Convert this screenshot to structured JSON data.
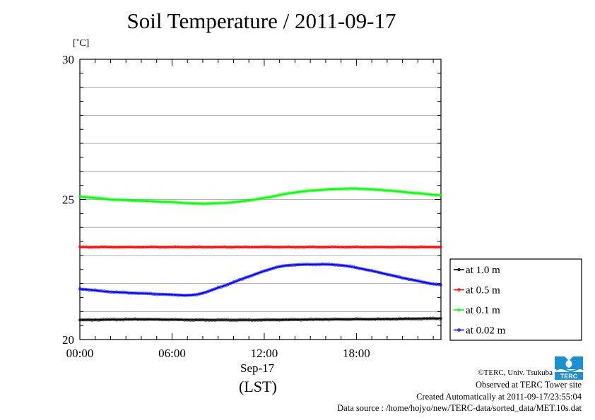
{
  "title": "Soil Temperature / 2011-09-17",
  "credits": [
    "©TERC, Univ. Tsukuba",
    "Observed at TERC Tower site",
    "Created Automatically at 2011-09-17/23:55:04",
    "Data source : /home/hojyo/new/TERC-data/sorted_data/MET.10s.dat"
  ],
  "logo_text": "TERC",
  "chart_data": {
    "type": "line",
    "title": "Soil Temperature / 2011-09-17",
    "ylabel": "[˚C]",
    "xlabel": "Sep-17",
    "xlabel2": "(LST)",
    "x_ticks": [
      "00:00",
      "06:00",
      "12:00",
      "18:00"
    ],
    "x_tick_hours": [
      0,
      6,
      12,
      18
    ],
    "xlim": [
      0,
      23.5
    ],
    "y_ticks": [
      20,
      25,
      30
    ],
    "ylim": [
      20,
      30
    ],
    "grid": true,
    "legend_placement": "right",
    "series": [
      {
        "name": "at 1.0 m",
        "color": "#000000",
        "points": [
          [
            0,
            20.7
          ],
          [
            4,
            20.72
          ],
          [
            8,
            20.7
          ],
          [
            12,
            20.7
          ],
          [
            16,
            20.72
          ],
          [
            20,
            20.73
          ],
          [
            23.5,
            20.75
          ]
        ]
      },
      {
        "name": "at 0.5 m",
        "color": "#ff0000",
        "points": [
          [
            0,
            23.3
          ],
          [
            4,
            23.3
          ],
          [
            8,
            23.3
          ],
          [
            12,
            23.3
          ],
          [
            16,
            23.3
          ],
          [
            20,
            23.3
          ],
          [
            23.5,
            23.3
          ]
        ]
      },
      {
        "name": "at 0.1 m",
        "color": "#00ff00",
        "points": [
          [
            0,
            25.1
          ],
          [
            2,
            25.0
          ],
          [
            4,
            24.95
          ],
          [
            6,
            24.9
          ],
          [
            8,
            24.85
          ],
          [
            10,
            24.9
          ],
          [
            12,
            25.05
          ],
          [
            14,
            25.25
          ],
          [
            16,
            25.35
          ],
          [
            18,
            25.38
          ],
          [
            20,
            25.32
          ],
          [
            22,
            25.22
          ],
          [
            23.5,
            25.15
          ]
        ]
      },
      {
        "name": "at 0.02 m",
        "color": "#0000ff",
        "points": [
          [
            0,
            21.8
          ],
          [
            2,
            21.7
          ],
          [
            4,
            21.65
          ],
          [
            6,
            21.6
          ],
          [
            7.5,
            21.6
          ],
          [
            9,
            21.85
          ],
          [
            11,
            22.25
          ],
          [
            13,
            22.6
          ],
          [
            15,
            22.68
          ],
          [
            17,
            22.65
          ],
          [
            19,
            22.45
          ],
          [
            21,
            22.2
          ],
          [
            23.5,
            21.95
          ]
        ]
      }
    ]
  }
}
